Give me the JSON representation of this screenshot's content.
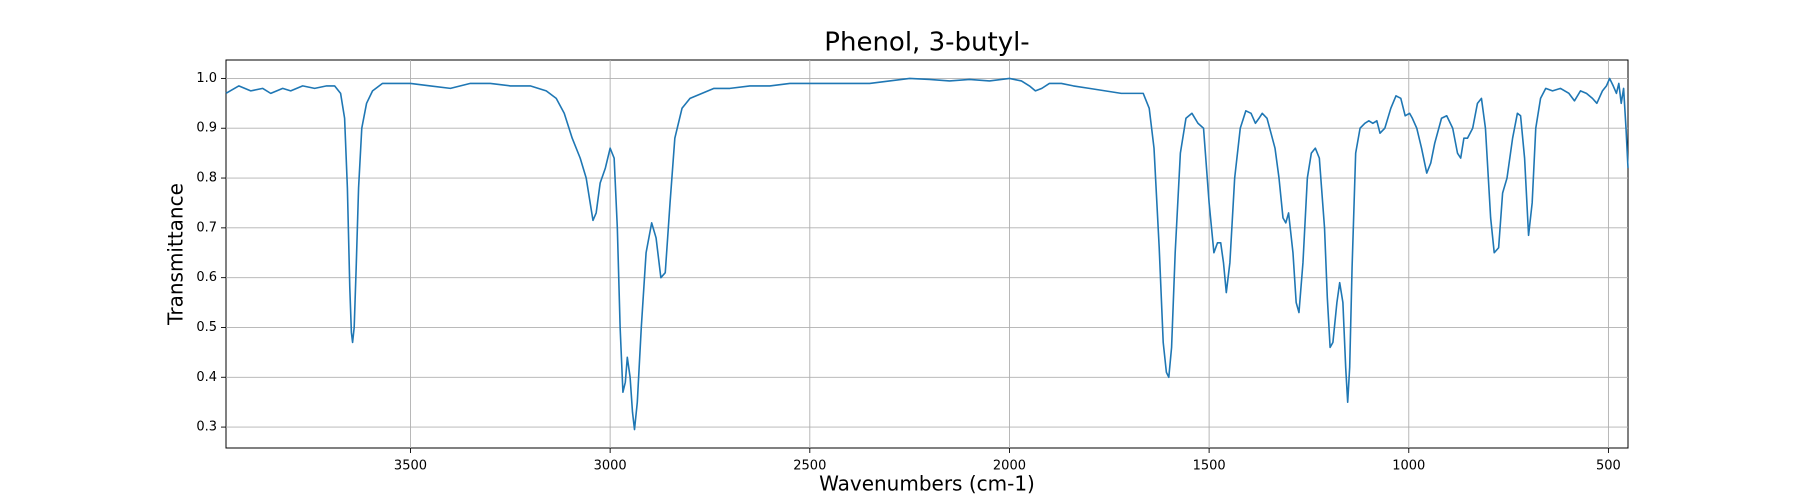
{
  "chart_data": {
    "type": "line",
    "title": "Phenol, 3-butyl-",
    "x_label": "Wavenumbers (cm-1)",
    "y_label": "Transmittance",
    "xlim": [
      3962,
      451
    ],
    "ylim": [
      0.258,
      1.037
    ],
    "xticks": [
      3500,
      3000,
      2500,
      2000,
      1500,
      1000,
      500
    ],
    "yticks": [
      0.3,
      0.4,
      0.5,
      0.6,
      0.7,
      0.8,
      0.9,
      {
        "value": 1,
        "label": "1.0"
      }
    ],
    "grid": true,
    "series": [
      {
        "name": "Phenol, 3-butyl-",
        "color": "#1f77b4",
        "x": [
          3962,
          3930,
          3900,
          3870,
          3850,
          3820,
          3800,
          3770,
          3740,
          3710,
          3690,
          3675,
          3665,
          3658,
          3652,
          3648,
          3645,
          3641,
          3636,
          3630,
          3622,
          3610,
          3595,
          3570,
          3550,
          3520,
          3500,
          3450,
          3400,
          3350,
          3300,
          3250,
          3200,
          3160,
          3135,
          3115,
          3095,
          3075,
          3060,
          3050,
          3043,
          3035,
          3025,
          3012,
          3000,
          2990,
          2982,
          2975,
          2968,
          2962,
          2957,
          2950,
          2944,
          2939,
          2932,
          2922,
          2910,
          2896,
          2885,
          2873,
          2862,
          2850,
          2838,
          2820,
          2800,
          2770,
          2740,
          2700,
          2650,
          2600,
          2550,
          2500,
          2450,
          2400,
          2350,
          2300,
          2250,
          2200,
          2150,
          2100,
          2050,
          2000,
          1970,
          1950,
          1935,
          1919,
          1900,
          1870,
          1840,
          1800,
          1760,
          1720,
          1690,
          1665,
          1650,
          1638,
          1625,
          1615,
          1607,
          1601,
          1594,
          1585,
          1572,
          1558,
          1543,
          1528,
          1514,
          1500,
          1488,
          1479,
          1471,
          1464,
          1457,
          1448,
          1436,
          1422,
          1408,
          1395,
          1384,
          1375,
          1367,
          1355,
          1335,
          1325,
          1315,
          1308,
          1301,
          1290,
          1282,
          1275,
          1265,
          1254,
          1244,
          1234,
          1224,
          1211,
          1204,
          1197,
          1190,
          1180,
          1173,
          1165,
          1158,
          1153,
          1148,
          1142,
          1133,
          1122,
          1110,
          1100,
          1090,
          1080,
          1072,
          1060,
          1045,
          1032,
          1020,
          1009,
          998,
          991,
          980,
          968,
          955,
          945,
          935,
          918,
          905,
          890,
          878,
          870,
          862,
          853,
          840,
          828,
          818,
          808,
          795,
          786,
          775,
          765,
          754,
          740,
          728,
          720,
          710,
          700,
          691,
          682,
          670,
          657,
          640,
          620,
          599,
          585,
          570,
          555,
          540,
          529,
          515,
          505,
          497,
          488,
          480,
          474,
          468,
          462,
          456,
          451
        ],
        "values": [
          0.97,
          0.985,
          0.975,
          0.98,
          0.97,
          0.98,
          0.975,
          0.985,
          0.98,
          0.985,
          0.985,
          0.97,
          0.92,
          0.78,
          0.58,
          0.49,
          0.47,
          0.5,
          0.62,
          0.78,
          0.9,
          0.95,
          0.975,
          0.99,
          0.99,
          0.99,
          0.99,
          0.985,
          0.98,
          0.99,
          0.99,
          0.985,
          0.985,
          0.975,
          0.96,
          0.93,
          0.88,
          0.84,
          0.8,
          0.75,
          0.715,
          0.73,
          0.79,
          0.82,
          0.86,
          0.84,
          0.7,
          0.5,
          0.37,
          0.39,
          0.44,
          0.4,
          0.33,
          0.295,
          0.35,
          0.5,
          0.65,
          0.71,
          0.68,
          0.6,
          0.61,
          0.75,
          0.88,
          0.94,
          0.96,
          0.97,
          0.98,
          0.98,
          0.985,
          0.985,
          0.99,
          0.99,
          0.99,
          0.99,
          0.99,
          0.995,
          1.0,
          0.998,
          0.995,
          0.998,
          0.995,
          1.0,
          0.995,
          0.985,
          0.975,
          0.98,
          0.99,
          0.99,
          0.985,
          0.98,
          0.975,
          0.97,
          0.97,
          0.97,
          0.94,
          0.86,
          0.66,
          0.47,
          0.41,
          0.4,
          0.46,
          0.65,
          0.85,
          0.92,
          0.93,
          0.91,
          0.9,
          0.75,
          0.65,
          0.67,
          0.67,
          0.63,
          0.57,
          0.63,
          0.8,
          0.9,
          0.935,
          0.93,
          0.91,
          0.92,
          0.93,
          0.92,
          0.86,
          0.8,
          0.72,
          0.71,
          0.73,
          0.65,
          0.55,
          0.53,
          0.63,
          0.8,
          0.85,
          0.86,
          0.84,
          0.7,
          0.56,
          0.46,
          0.47,
          0.55,
          0.59,
          0.55,
          0.42,
          0.35,
          0.42,
          0.62,
          0.85,
          0.9,
          0.91,
          0.915,
          0.91,
          0.915,
          0.89,
          0.9,
          0.94,
          0.965,
          0.96,
          0.925,
          0.93,
          0.92,
          0.9,
          0.86,
          0.81,
          0.83,
          0.87,
          0.92,
          0.925,
          0.9,
          0.85,
          0.84,
          0.88,
          0.88,
          0.9,
          0.95,
          0.96,
          0.9,
          0.72,
          0.65,
          0.66,
          0.77,
          0.8,
          0.88,
          0.93,
          0.925,
          0.84,
          0.685,
          0.75,
          0.9,
          0.96,
          0.98,
          0.975,
          0.98,
          0.97,
          0.955,
          0.975,
          0.97,
          0.96,
          0.95,
          0.975,
          0.985,
          1.0,
          0.985,
          0.97,
          0.99,
          0.95,
          0.98,
          0.9,
          0.82
        ]
      }
    ]
  }
}
